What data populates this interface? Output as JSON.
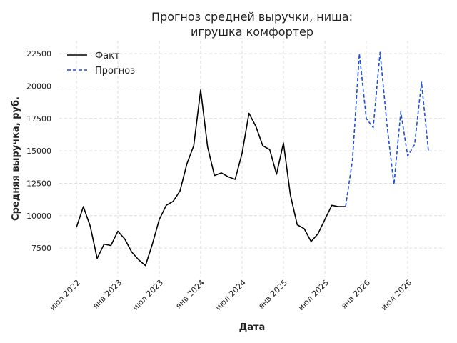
{
  "chart_data": {
    "type": "line",
    "title_lines": [
      "Прогноз средней выручки, ниша:",
      "игрушка комфортер"
    ],
    "xlabel": "Дата",
    "ylabel": "Средняя выручка, руб.",
    "x_tick_labels": [
      "июл 2022",
      "янв 2023",
      "июл 2023",
      "янв 2024",
      "июл 2024",
      "янв 2025",
      "июл 2025",
      "янв 2026",
      "июл 2026"
    ],
    "y_ticks": [
      7500,
      10000,
      12500,
      15000,
      17500,
      20000,
      22500
    ],
    "y_tick_labels": [
      "7500",
      "10000",
      "12500",
      "15000",
      "17500",
      "20000",
      "22500"
    ],
    "ylim": [
      5300,
      23500
    ],
    "grid": true,
    "legend_position": "top-left",
    "colors": {
      "actual": "#000000",
      "forecast": "#1f4fd6"
    },
    "series": [
      {
        "name": "Факт",
        "style": "solid",
        "x": [
          "2022-07",
          "2022-08",
          "2022-09",
          "2022-10",
          "2022-11",
          "2022-12",
          "2023-01",
          "2023-02",
          "2023-03",
          "2023-04",
          "2023-05",
          "2023-06",
          "2023-07",
          "2023-08",
          "2023-09",
          "2023-10",
          "2023-11",
          "2023-12",
          "2024-01",
          "2024-02",
          "2024-03",
          "2024-04",
          "2024-05",
          "2024-06",
          "2024-07",
          "2024-08",
          "2024-09",
          "2024-10",
          "2024-11",
          "2024-12",
          "2025-01",
          "2025-02",
          "2025-03",
          "2025-04",
          "2025-05",
          "2025-06",
          "2025-07",
          "2025-08",
          "2025-09",
          "2025-10"
        ],
        "values": [
          9100,
          10700,
          9200,
          6700,
          7800,
          7700,
          8800,
          8200,
          7200,
          6600,
          6150,
          7800,
          9700,
          10800,
          11100,
          11900,
          14000,
          15400,
          19700,
          15300,
          13100,
          13300,
          13000,
          12800,
          14800,
          17900,
          16900,
          15400,
          15100,
          13200,
          15600,
          11600,
          9300,
          9000,
          8000,
          8600,
          9700,
          10800,
          10700,
          10700
        ]
      },
      {
        "name": "Прогноз",
        "style": "dashed",
        "x": [
          "2025-10",
          "2025-11",
          "2025-12",
          "2026-01",
          "2026-02",
          "2026-03",
          "2026-04",
          "2026-05",
          "2026-06",
          "2026-07",
          "2026-08",
          "2026-09",
          "2026-10"
        ],
        "values": [
          10700,
          14300,
          22500,
          17500,
          16800,
          22600,
          17000,
          12400,
          18000,
          14600,
          15500,
          20300,
          15000
        ]
      }
    ]
  }
}
